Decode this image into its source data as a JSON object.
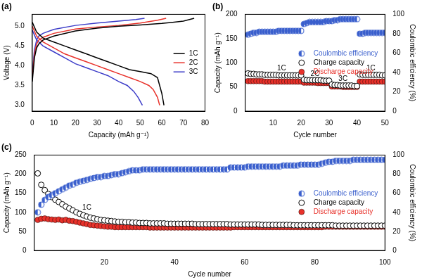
{
  "chart_data": [
    {
      "type": "line",
      "title": "(a)",
      "x_label": "Capacity (mAh g⁻¹)",
      "y_label": "Voltage (V)",
      "xlim": [
        0,
        80
      ],
      "xticks": [
        0,
        10,
        20,
        30,
        40,
        50,
        60,
        70,
        80
      ],
      "ylim": [
        2.85,
        5.3
      ],
      "yticks": [
        {
          "value": 3,
          "label": "3.0"
        },
        3.5,
        {
          "value": 4,
          "label": "4.0"
        },
        4.5,
        {
          "value": 5,
          "label": "5.0"
        }
      ],
      "grid": false,
      "legend": "right",
      "series": [
        {
          "name": "1C",
          "color": "#000000",
          "line_style": "solid",
          "x": [
            0,
            1,
            2,
            3,
            5,
            10,
            20,
            30,
            40,
            50,
            60,
            65,
            70,
            75,
            null,
            0,
            2,
            5,
            10,
            15,
            20,
            25,
            30,
            35,
            40,
            45,
            50,
            55,
            58,
            59,
            60,
            61
          ],
          "values": [
            3.6,
            4.2,
            4.45,
            4.55,
            4.65,
            4.75,
            4.88,
            4.95,
            5.0,
            5.03,
            5.07,
            5.1,
            5.13,
            5.2,
            null,
            5.1,
            4.85,
            4.7,
            4.6,
            4.5,
            4.4,
            4.3,
            4.2,
            4.1,
            4.0,
            3.9,
            3.85,
            3.8,
            3.7,
            3.5,
            3.3,
            3.0
          ]
        },
        {
          "name": "2C",
          "color": "#e8312a",
          "line_style": "solid",
          "x": [
            0,
            1,
            2,
            3,
            5,
            10,
            20,
            30,
            40,
            50,
            58,
            62,
            null,
            0,
            2,
            5,
            10,
            15,
            20,
            25,
            30,
            35,
            40,
            45,
            50,
            54,
            56,
            58,
            59
          ],
          "values": [
            3.7,
            4.3,
            4.55,
            4.65,
            4.72,
            4.82,
            4.93,
            4.98,
            5.02,
            5.08,
            5.15,
            5.2,
            null,
            5.0,
            4.75,
            4.6,
            4.45,
            4.3,
            4.2,
            4.1,
            4.0,
            3.9,
            3.8,
            3.7,
            3.6,
            3.5,
            3.4,
            3.2,
            3.0
          ]
        },
        {
          "name": "3C",
          "color": "#3c3cc8",
          "line_style": "solid",
          "x": [
            0,
            1,
            2,
            3,
            5,
            10,
            20,
            30,
            40,
            48,
            52,
            null,
            0,
            2,
            5,
            10,
            15,
            20,
            25,
            30,
            35,
            40,
            44,
            47,
            49,
            51
          ],
          "values": [
            3.8,
            4.4,
            4.65,
            4.75,
            4.82,
            4.92,
            5.02,
            5.08,
            5.13,
            5.17,
            5.2,
            null,
            4.9,
            4.65,
            4.5,
            4.35,
            4.2,
            4.05,
            3.95,
            3.85,
            3.75,
            3.6,
            3.5,
            3.35,
            3.2,
            3.0
          ]
        }
      ]
    },
    {
      "type": "scatter",
      "title": "(b)",
      "x_label": "Cycle number",
      "y_label": "Capacity (mAh g⁻¹)",
      "y2_label": "Coulombic efficiency (%)",
      "xlim": [
        0,
        50
      ],
      "xticks": [
        10,
        20,
        30,
        40,
        50
      ],
      "ylim": [
        0,
        200
      ],
      "yticks": [
        0,
        50,
        100,
        150,
        200
      ],
      "y2lim": [
        0,
        100
      ],
      "y2ticks": [
        0,
        20,
        40,
        60,
        80,
        100
      ],
      "grid": false,
      "legend": "right",
      "annotations": [
        {
          "text": "1C",
          "x": 13,
          "y": 88
        },
        {
          "text": "2C",
          "x": 25,
          "y": 76
        },
        {
          "text": "3C",
          "x": 35,
          "y": 66
        },
        {
          "text": "1C",
          "x": 45,
          "y": 88
        }
      ],
      "x": [
        1,
        2,
        3,
        4,
        5,
        6,
        7,
        8,
        9,
        10,
        11,
        12,
        13,
        14,
        15,
        16,
        17,
        18,
        19,
        20,
        21,
        22,
        23,
        24,
        25,
        26,
        27,
        28,
        29,
        30,
        31,
        32,
        33,
        34,
        35,
        36,
        37,
        38,
        39,
        40,
        41,
        42,
        43,
        44,
        45,
        46,
        47,
        48,
        49,
        50
      ],
      "series": [
        {
          "name": "Coulombic efficiency",
          "color": "#3a5fcd",
          "marker": "half_circle",
          "axis": "y2",
          "values": [
            79,
            80,
            81,
            81,
            82,
            82,
            82,
            82,
            82,
            82,
            82,
            83,
            83,
            83,
            83,
            83,
            83,
            83,
            83,
            83,
            90,
            91,
            92,
            92,
            92,
            92,
            92,
            92,
            93,
            93,
            93,
            94,
            94,
            95,
            95,
            95,
            95,
            95,
            95,
            95,
            80,
            80,
            81,
            81,
            81,
            81,
            81,
            81,
            81,
            81
          ]
        },
        {
          "name": "Charge capacity",
          "color": "#000000",
          "marker": "open_circle",
          "values": [
            78,
            77,
            77,
            76,
            76,
            76,
            75,
            75,
            75,
            75,
            75,
            74,
            74,
            74,
            74,
            74,
            74,
            74,
            74,
            74,
            65,
            64,
            64,
            64,
            64,
            64,
            64,
            63,
            63,
            63,
            55,
            54,
            54,
            53,
            53,
            53,
            53,
            53,
            52,
            52,
            76,
            75,
            75,
            75,
            75,
            75,
            75,
            75,
            74,
            74
          ]
        },
        {
          "name": "Discharge capacity",
          "color": "#e8312a",
          "marker": "circle",
          "values": [
            62,
            62,
            62,
            62,
            62,
            62,
            61,
            61,
            61,
            61,
            61,
            61,
            61,
            61,
            61,
            61,
            61,
            61,
            61,
            61,
            59,
            59,
            59,
            59,
            59,
            58,
            58,
            58,
            58,
            58,
            51,
            51,
            51,
            51,
            50,
            50,
            50,
            50,
            50,
            50,
            61,
            61,
            61,
            61,
            61,
            61,
            61,
            61,
            61,
            61
          ]
        }
      ]
    },
    {
      "type": "scatter",
      "title": "(c)",
      "x_label": "Cycle number",
      "y_label": "Capacity (mAh g⁻¹)",
      "y2_label": "Coulombic efficiency (%)",
      "xlim": [
        0,
        100
      ],
      "xticks": [
        20,
        40,
        60,
        80,
        100
      ],
      "ylim": [
        0,
        250
      ],
      "yticks": [
        0,
        50,
        100,
        150,
        200,
        250
      ],
      "y2lim": [
        0,
        100
      ],
      "y2ticks": [
        0,
        20,
        40,
        60,
        80,
        100
      ],
      "grid": false,
      "legend": "right",
      "annotations": [
        {
          "text": "1C",
          "x": 15,
          "y": 112
        }
      ],
      "x": [
        1,
        2,
        3,
        4,
        5,
        6,
        7,
        8,
        9,
        10,
        11,
        12,
        13,
        14,
        15,
        16,
        17,
        18,
        19,
        20,
        21,
        22,
        23,
        24,
        25,
        26,
        27,
        28,
        29,
        30,
        31,
        32,
        33,
        34,
        35,
        36,
        37,
        38,
        39,
        40,
        41,
        42,
        43,
        44,
        45,
        46,
        47,
        48,
        49,
        50,
        51,
        52,
        53,
        54,
        55,
        56,
        57,
        58,
        59,
        60,
        61,
        62,
        63,
        64,
        65,
        66,
        67,
        68,
        69,
        70,
        71,
        72,
        73,
        74,
        75,
        76,
        77,
        78,
        79,
        80,
        81,
        82,
        83,
        84,
        85,
        86,
        87,
        88,
        89,
        90,
        91,
        92,
        93,
        94,
        95,
        96,
        97,
        98,
        99,
        100
      ],
      "series": [
        {
          "name": "Coulombic efficiency",
          "color": "#3a5fcd",
          "marker": "half_circle",
          "axis": "y2",
          "values": [
            40,
            48,
            53,
            56,
            58,
            60,
            62,
            64,
            66,
            68,
            69,
            71,
            72,
            73,
            74,
            75,
            76,
            77,
            77,
            78,
            78,
            79,
            80,
            80,
            81,
            82,
            83,
            84,
            84,
            84,
            85,
            85,
            85,
            85,
            85,
            85,
            85,
            85,
            85,
            85,
            85,
            85,
            85,
            85,
            85,
            85,
            85,
            85,
            85,
            85,
            85,
            85,
            85,
            85,
            85,
            87,
            87,
            87,
            87,
            87,
            88,
            88,
            88,
            88,
            88,
            88,
            88,
            88,
            88,
            88,
            89,
            89,
            89,
            89,
            89,
            90,
            90,
            90,
            90,
            90,
            90,
            91,
            92,
            93,
            93,
            94,
            94,
            94,
            94,
            94,
            95,
            95,
            95,
            95,
            95,
            95,
            95,
            95,
            95,
            95
          ]
        },
        {
          "name": "Charge capacity",
          "color": "#000000",
          "marker": "open_circle",
          "values": [
            202,
            172,
            158,
            148,
            140,
            133,
            127,
            121,
            115,
            110,
            105,
            100,
            96,
            92,
            89,
            86,
            84,
            82,
            80,
            79,
            78,
            77,
            76,
            75,
            75,
            74,
            74,
            73,
            73,
            72,
            72,
            72,
            71,
            71,
            71,
            71,
            71,
            70,
            70,
            70,
            70,
            70,
            70,
            70,
            70,
            69,
            69,
            69,
            69,
            69,
            69,
            69,
            69,
            69,
            69,
            68,
            68,
            68,
            68,
            68,
            68,
            68,
            68,
            68,
            67,
            67,
            67,
            67,
            67,
            67,
            67,
            67,
            67,
            66,
            66,
            66,
            66,
            66,
            66,
            66,
            66,
            66,
            66,
            66,
            66,
            65,
            65,
            65,
            65,
            65,
            65,
            65,
            65,
            65,
            65,
            65,
            65,
            65,
            65,
            65
          ]
        },
        {
          "name": "Discharge capacity",
          "color": "#e8312a",
          "marker": "circle",
          "values": [
            80,
            83,
            84,
            82,
            81,
            80,
            81,
            79,
            80,
            78,
            77,
            75,
            73,
            71,
            69,
            67,
            66,
            65,
            64,
            63,
            62,
            62,
            61,
            61,
            61,
            61,
            61,
            61,
            61,
            61,
            61,
            61,
            60,
            60,
            60,
            60,
            60,
            60,
            60,
            60,
            60,
            60,
            60,
            60,
            60,
            60,
            60,
            60,
            60,
            60,
            60,
            60,
            60,
            60,
            60,
            60,
            61,
            61,
            61,
            61,
            61,
            61,
            61,
            61,
            61,
            61,
            61,
            61,
            61,
            61,
            61,
            61,
            61,
            61,
            61,
            61,
            61,
            61,
            61,
            61,
            61,
            61,
            62,
            62,
            62,
            62,
            62,
            62,
            62,
            62,
            62,
            62,
            62,
            62,
            62,
            62,
            62,
            62,
            62,
            62
          ]
        }
      ]
    }
  ]
}
